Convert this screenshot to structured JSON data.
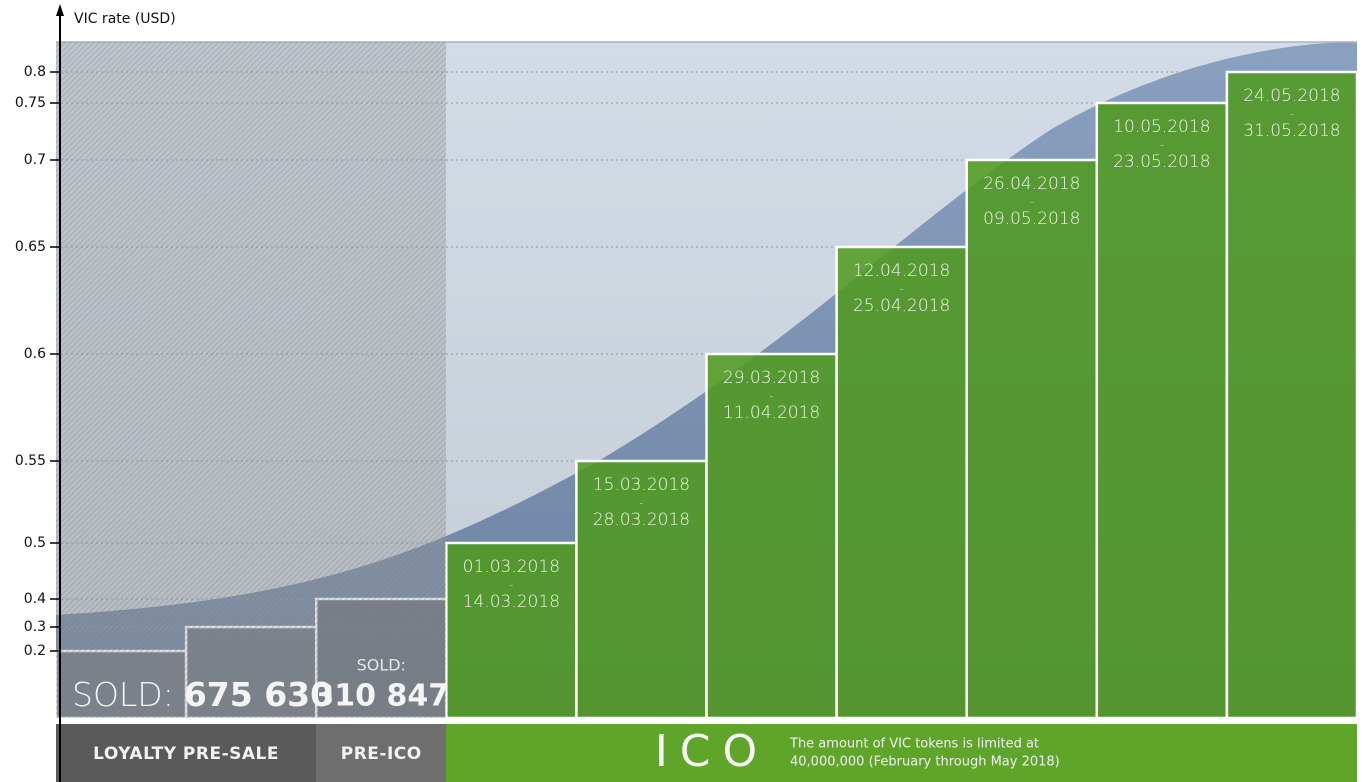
{
  "chart_data": {
    "type": "bar",
    "y_label": "VIC rate (USD)",
    "categories": [
      null,
      null,
      null,
      "01.03.2018",
      "15.03.2018",
      "29.03.2018",
      "12.04.2018",
      "26.04.2018",
      "10.05.2018",
      "24.05.2018"
    ],
    "end_dates": [
      null,
      null,
      null,
      "14.03.2018",
      "28.03.2018",
      "11.04.2018",
      "25.04.2018",
      "09.05.2018",
      "23.05.2018",
      "31.05.2018"
    ],
    "separator": "-",
    "values": [
      0.2,
      0.3,
      0.4,
      0.5,
      0.55,
      0.6,
      0.65,
      0.7,
      0.75,
      0.8
    ],
    "colors": [
      "#6a6a6a",
      "#6a6a6a",
      "#5e5e5e",
      "#4f9a1c",
      "#4f9a1c",
      "#4f9a1c",
      "#4f9a1c",
      "#4f9a1c",
      "#4f9a1c",
      "#4f9a1c"
    ],
    "ylim": [
      0.2,
      0.8
    ],
    "yticks": [
      0.2,
      0.3,
      0.4,
      0.5,
      0.55,
      0.6,
      0.65,
      0.7,
      0.75,
      0.8
    ],
    "grid": true,
    "sold": [
      {
        "label": "SOLD:",
        "value": "675 630"
      },
      {
        "label": "SOLD:",
        "value": "310 847"
      }
    ],
    "phases": [
      {
        "name": "LOYALTY PRE-SALE"
      },
      {
        "name": "PRE-ICO"
      },
      {
        "name": "ICO",
        "note": [
          "The amount of VIC tokens is limited at",
          "40,000,000 (February through May 2018)"
        ]
      }
    ]
  }
}
